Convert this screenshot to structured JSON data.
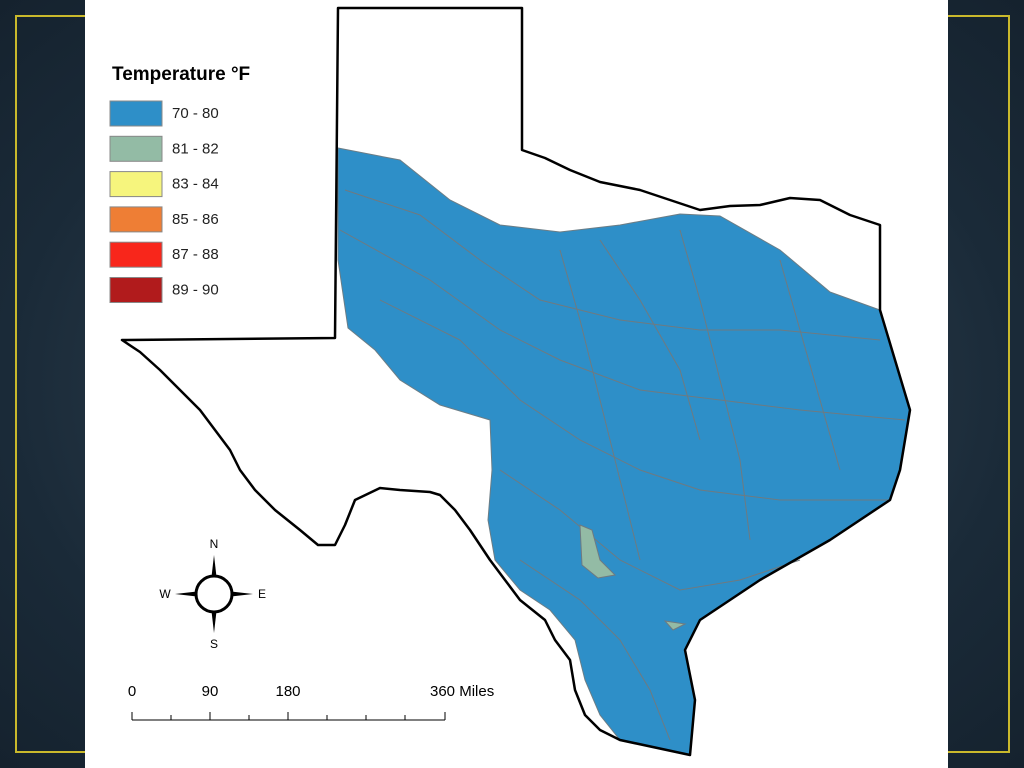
{
  "legend": {
    "title": "Temperature °F",
    "items": [
      {
        "label": "70 - 80",
        "color": "#2e8fc8"
      },
      {
        "label": "81 - 82",
        "color": "#93bba5"
      },
      {
        "label": "83 - 84",
        "color": "#f6f57d"
      },
      {
        "label": "85 - 86",
        "color": "#ee7e35"
      },
      {
        "label": "87 - 88",
        "color": "#f8261b"
      },
      {
        "label": "89 - 90",
        "color": "#b11b1c"
      }
    ]
  },
  "compass": {
    "north": "N",
    "south": "S",
    "east": "E",
    "west": "W"
  },
  "scale_bar": {
    "labels": [
      "0",
      "90",
      "180",
      "360 Miles"
    ]
  }
}
